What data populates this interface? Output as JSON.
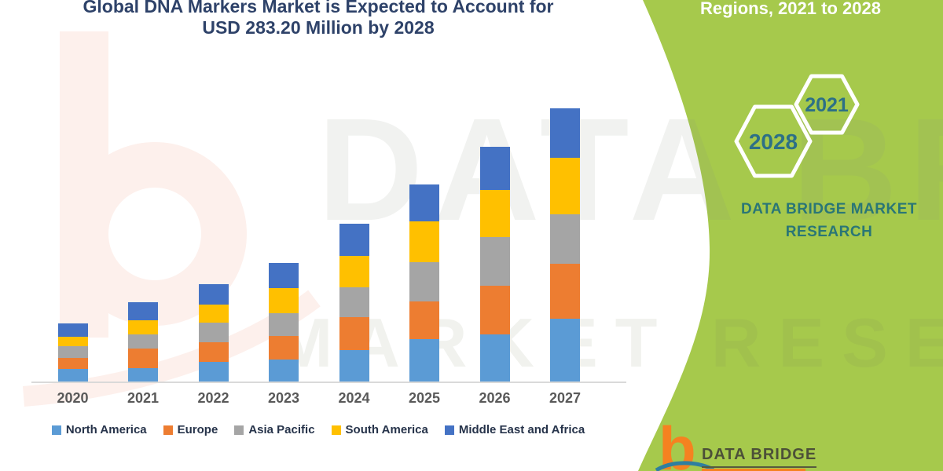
{
  "title": {
    "line1": "Global DNA Markers Market is Expected to Account for",
    "line2": "USD 283.20 Million by 2028"
  },
  "right_panel": {
    "heading": "Regions, 2021 to 2028",
    "background_color": "#a6c94c",
    "hexagons": [
      {
        "label": "2028"
      },
      {
        "label": "2021"
      }
    ],
    "brand_line1": "DATA BRIDGE MARKET",
    "brand_line2": "RESEARCH",
    "brand_color": "#2a7676"
  },
  "watermarks": {
    "big_text": "DATA BRIDGE",
    "mid_text": "MARKET RESEARCH"
  },
  "logo": {
    "glyph": "b",
    "text": "DATA BRIDGE",
    "glyph_color": "#f58220"
  },
  "chart_data": {
    "type": "bar",
    "stacked": true,
    "title": "Global DNA Markers Market is Expected to Account for USD 283.20 Million by 2028",
    "xlabel": "",
    "ylabel": "",
    "grid": false,
    "legend_position": "bottom",
    "units": "relative height units (no value axis labels shown in figure)",
    "categories": [
      "2020",
      "2021",
      "2022",
      "2023",
      "2024",
      "2025",
      "2026",
      "2027"
    ],
    "series": [
      {
        "name": "North America",
        "color": "#5b9bd5",
        "values": [
          16,
          17,
          25,
          28,
          40,
          54,
          60,
          80
        ]
      },
      {
        "name": "Europe",
        "color": "#ed7d31",
        "values": [
          14,
          25,
          25,
          30,
          42,
          48,
          62,
          70
        ]
      },
      {
        "name": "Asia Pacific",
        "color": "#a5a5a5",
        "values": [
          15,
          18,
          25,
          29,
          38,
          50,
          62,
          63
        ]
      },
      {
        "name": "South America",
        "color": "#ffc000",
        "values": [
          12,
          18,
          23,
          32,
          40,
          52,
          60,
          72
        ]
      },
      {
        "name": "Middle East and Africa",
        "color": "#4472c4",
        "values": [
          17,
          23,
          26,
          32,
          41,
          47,
          55,
          63
        ]
      }
    ],
    "totals": [
      74,
      101,
      124,
      151,
      201,
      251,
      299,
      348
    ]
  }
}
